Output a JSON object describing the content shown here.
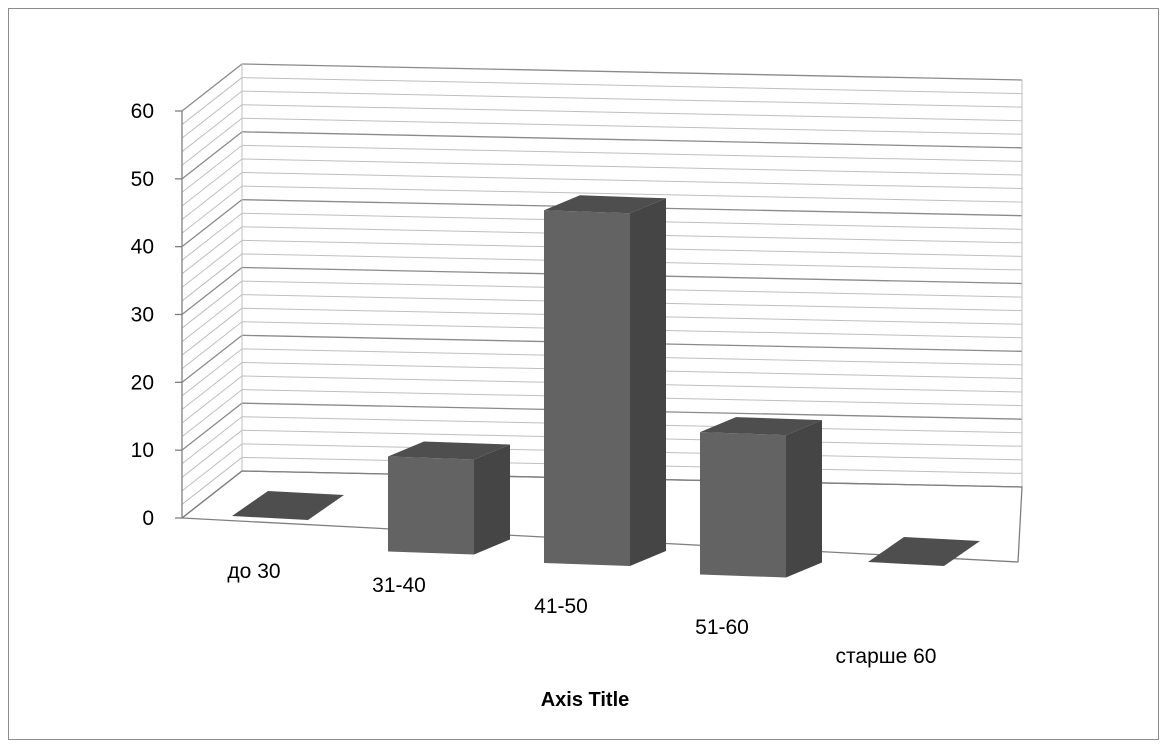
{
  "chart_data": {
    "type": "bar",
    "style": "3d-column",
    "categories": [
      "до 30",
      "31-40",
      "41-50",
      "51-60",
      "старше 60"
    ],
    "values": [
      0,
      14,
      52,
      21,
      0
    ],
    "ylim": [
      0,
      60
    ],
    "yticks": [
      "0",
      "10",
      "20",
      "30",
      "40",
      "50",
      "60"
    ],
    "xlabel": "Axis Title",
    "ylabel": "",
    "title": "",
    "grid": true,
    "legend": "none",
    "colors": {
      "bar_front": "#636363",
      "bar_side": "#454545",
      "bar_top": "#4e4e4e",
      "gridline": "#bfbfbf",
      "gridline_major": "#8a8a8a",
      "axis": "#7f7f7f"
    }
  }
}
